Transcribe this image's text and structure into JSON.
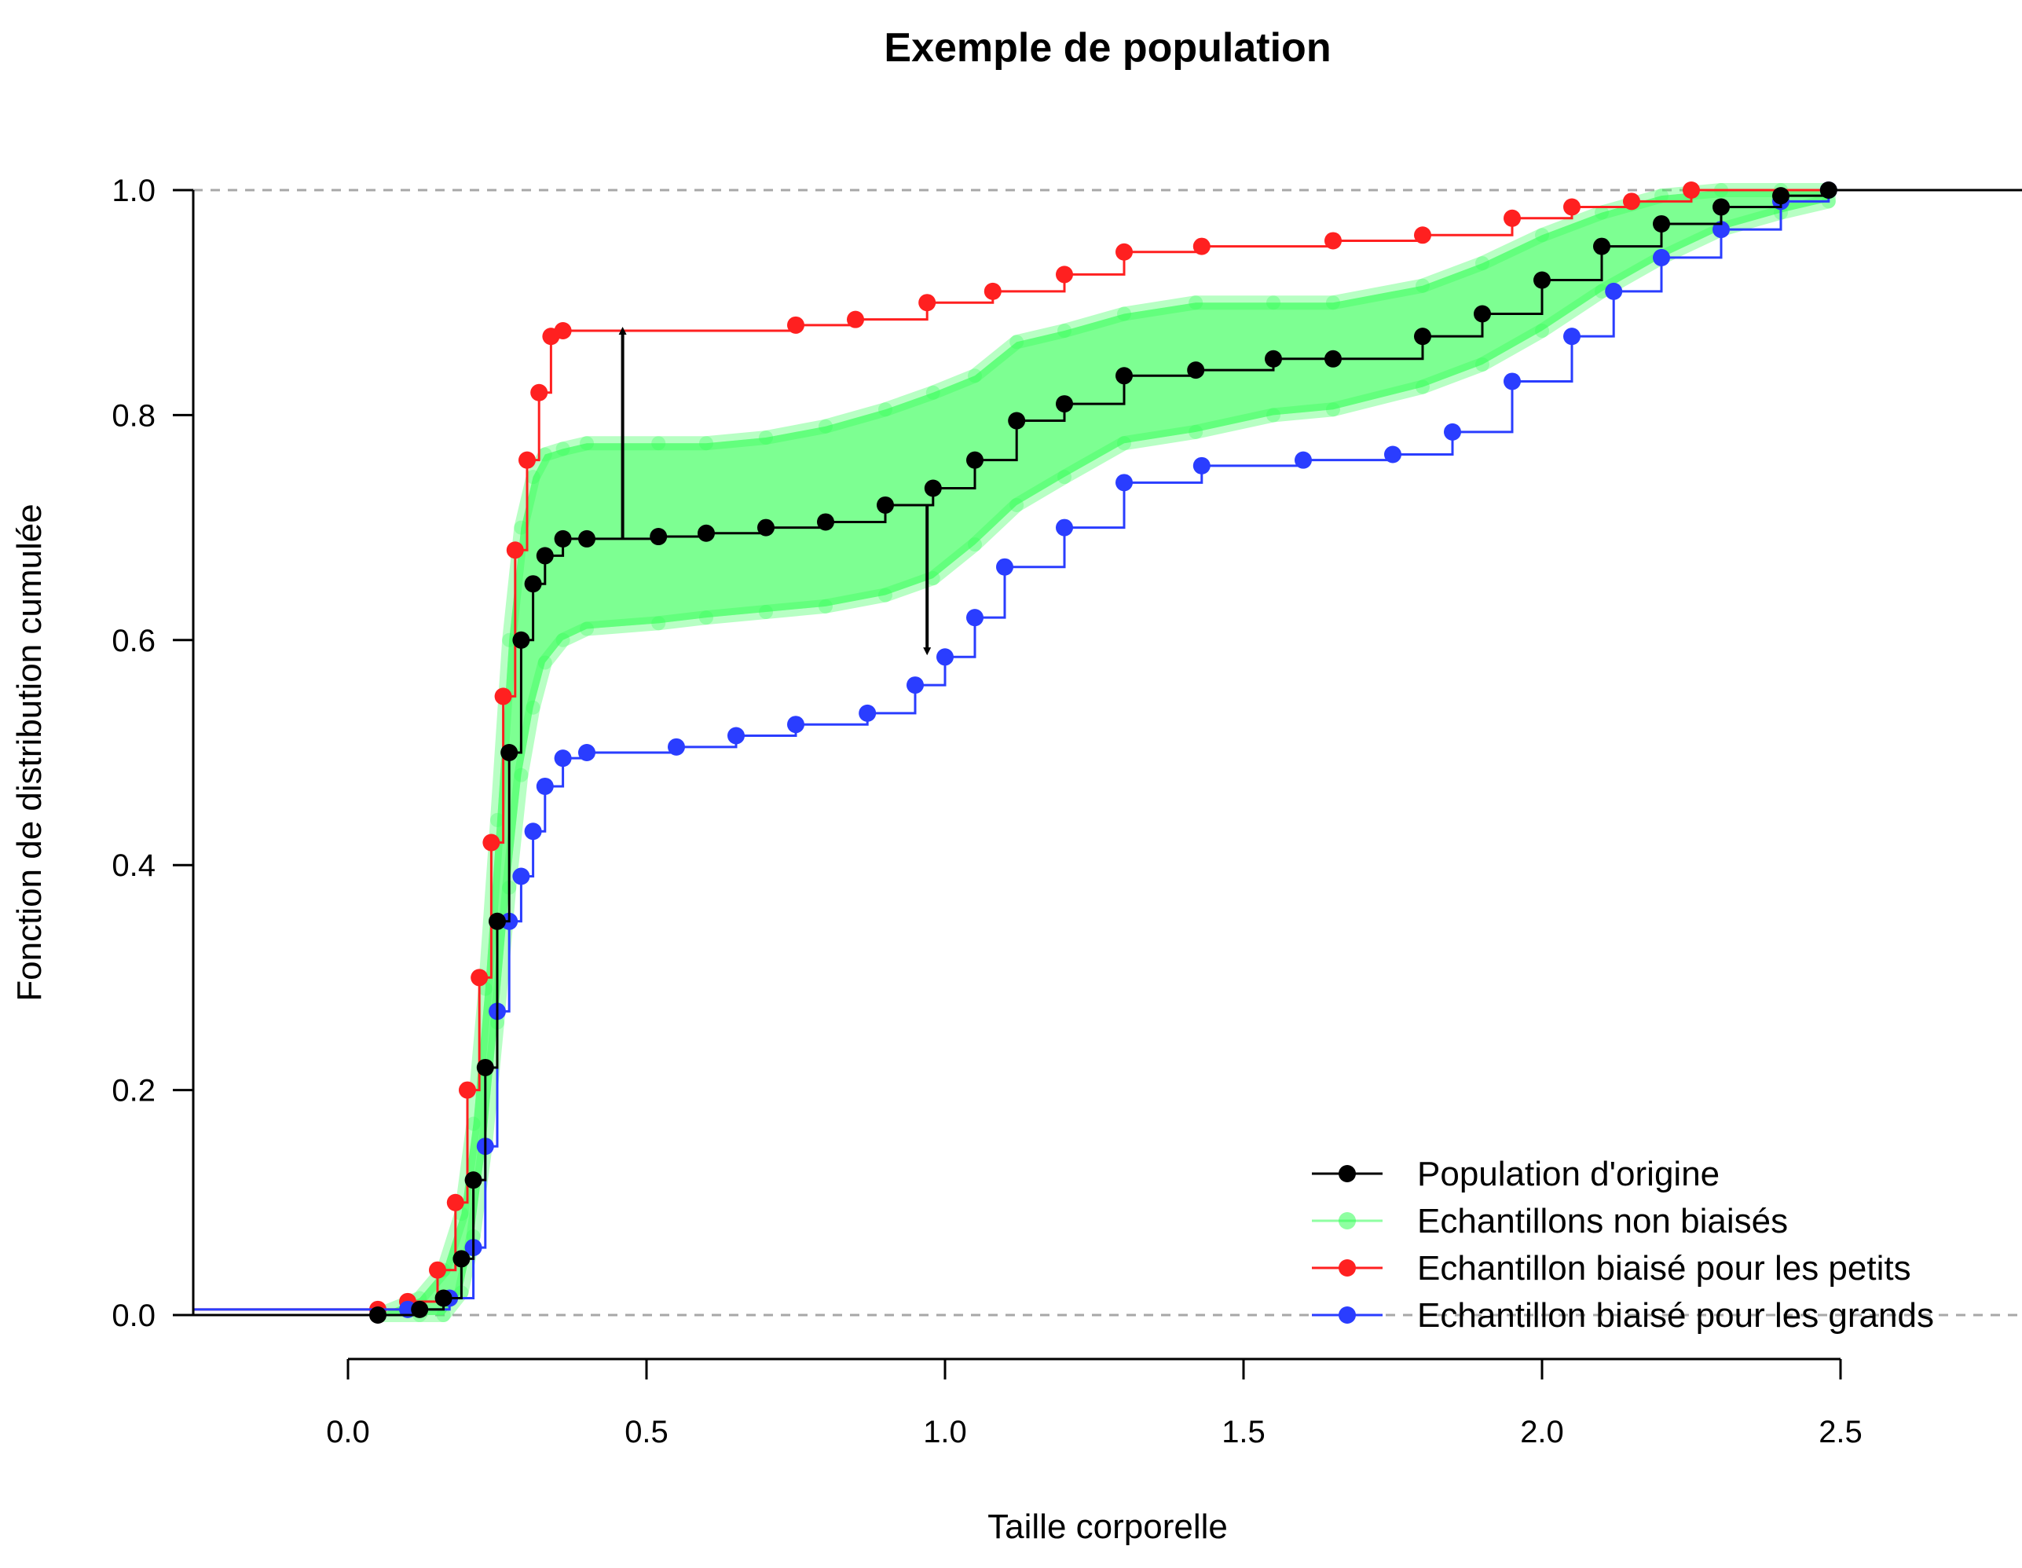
{
  "chart_data": {
    "type": "line",
    "title": "Exemple de population",
    "xlabel": "Taille corporelle",
    "ylabel": "Fonction de distribution cumulée",
    "xlim": [
      -0.28,
      2.85
    ],
    "ylim": [
      -0.04,
      1.04
    ],
    "x_ticks": [
      "0.0",
      "0.5",
      "1.0",
      "1.5",
      "2.0",
      "2.5"
    ],
    "y_ticks": [
      "0.0",
      "0.2",
      "0.4",
      "0.6",
      "0.8",
      "1.0"
    ],
    "x_tick_values": [
      0,
      0.5,
      1.0,
      1.5,
      2.0,
      2.5
    ],
    "y_tick_values": [
      0,
      0.2,
      0.4,
      0.6,
      0.8,
      1.0
    ],
    "reference_lines_y": [
      0,
      1
    ],
    "grid": false,
    "legend_position": "bottom-right",
    "series": [
      {
        "name": "Population d'origine",
        "color": "#000000",
        "points": [
          [
            0.05,
            0.0
          ],
          [
            0.12,
            0.005
          ],
          [
            0.16,
            0.015
          ],
          [
            0.19,
            0.05
          ],
          [
            0.21,
            0.12
          ],
          [
            0.23,
            0.22
          ],
          [
            0.25,
            0.35
          ],
          [
            0.27,
            0.5
          ],
          [
            0.29,
            0.6
          ],
          [
            0.31,
            0.65
          ],
          [
            0.33,
            0.675
          ],
          [
            0.36,
            0.69
          ],
          [
            0.4,
            0.69
          ],
          [
            0.52,
            0.692
          ],
          [
            0.6,
            0.695
          ],
          [
            0.7,
            0.7
          ],
          [
            0.8,
            0.705
          ],
          [
            0.9,
            0.72
          ],
          [
            0.98,
            0.735
          ],
          [
            1.05,
            0.76
          ],
          [
            1.12,
            0.795
          ],
          [
            1.2,
            0.81
          ],
          [
            1.3,
            0.835
          ],
          [
            1.42,
            0.84
          ],
          [
            1.55,
            0.85
          ],
          [
            1.65,
            0.85
          ],
          [
            1.8,
            0.87
          ],
          [
            1.9,
            0.89
          ],
          [
            2.0,
            0.92
          ],
          [
            2.1,
            0.95
          ],
          [
            2.2,
            0.97
          ],
          [
            2.3,
            0.985
          ],
          [
            2.4,
            0.995
          ],
          [
            2.48,
            1.0
          ]
        ]
      },
      {
        "name": "Echantillons non biaisés",
        "color": "#33ff55",
        "band": {
          "x": [
            0.05,
            0.12,
            0.16,
            0.19,
            0.21,
            0.23,
            0.25,
            0.27,
            0.29,
            0.31,
            0.33,
            0.36,
            0.4,
            0.52,
            0.6,
            0.7,
            0.8,
            0.9,
            0.98,
            1.05,
            1.12,
            1.2,
            1.3,
            1.42,
            1.55,
            1.65,
            1.8,
            1.9,
            2.0,
            2.1,
            2.2,
            2.3,
            2.4,
            2.48
          ],
          "lower": [
            0.0,
            0.0,
            0.0,
            0.02,
            0.07,
            0.15,
            0.26,
            0.38,
            0.48,
            0.54,
            0.58,
            0.6,
            0.61,
            0.615,
            0.62,
            0.625,
            0.63,
            0.64,
            0.655,
            0.685,
            0.72,
            0.745,
            0.775,
            0.785,
            0.8,
            0.805,
            0.825,
            0.845,
            0.875,
            0.91,
            0.94,
            0.965,
            0.98,
            0.99
          ],
          "upper": [
            0.0,
            0.015,
            0.04,
            0.09,
            0.17,
            0.29,
            0.44,
            0.6,
            0.7,
            0.745,
            0.765,
            0.77,
            0.775,
            0.775,
            0.775,
            0.78,
            0.79,
            0.805,
            0.82,
            0.835,
            0.865,
            0.875,
            0.89,
            0.9,
            0.9,
            0.9,
            0.915,
            0.935,
            0.96,
            0.98,
            0.995,
            1.0,
            1.0,
            1.0
          ]
        }
      },
      {
        "name": "Echantillon biaisé pour les petits",
        "color": "#ff2020",
        "points": [
          [
            0.05,
            0.005
          ],
          [
            0.1,
            0.012
          ],
          [
            0.15,
            0.04
          ],
          [
            0.18,
            0.1
          ],
          [
            0.2,
            0.2
          ],
          [
            0.22,
            0.3
          ],
          [
            0.24,
            0.42
          ],
          [
            0.26,
            0.55
          ],
          [
            0.28,
            0.68
          ],
          [
            0.3,
            0.76
          ],
          [
            0.32,
            0.82
          ],
          [
            0.34,
            0.87
          ],
          [
            0.36,
            0.875
          ],
          [
            0.75,
            0.88
          ],
          [
            0.85,
            0.885
          ],
          [
            0.97,
            0.9
          ],
          [
            1.08,
            0.91
          ],
          [
            1.2,
            0.925
          ],
          [
            1.3,
            0.945
          ],
          [
            1.43,
            0.95
          ],
          [
            1.65,
            0.955
          ],
          [
            1.8,
            0.96
          ],
          [
            1.95,
            0.975
          ],
          [
            2.05,
            0.985
          ],
          [
            2.15,
            0.99
          ],
          [
            2.25,
            1.0
          ]
        ]
      },
      {
        "name": "Echantillon biaisé pour les grands",
        "color": "#2a3dff",
        "points": [
          [
            0.1,
            0.005
          ],
          [
            0.17,
            0.015
          ],
          [
            0.21,
            0.06
          ],
          [
            0.23,
            0.15
          ],
          [
            0.25,
            0.27
          ],
          [
            0.27,
            0.35
          ],
          [
            0.29,
            0.39
          ],
          [
            0.31,
            0.43
          ],
          [
            0.33,
            0.47
          ],
          [
            0.36,
            0.495
          ],
          [
            0.4,
            0.5
          ],
          [
            0.55,
            0.505
          ],
          [
            0.65,
            0.515
          ],
          [
            0.75,
            0.525
          ],
          [
            0.87,
            0.535
          ],
          [
            0.95,
            0.56
          ],
          [
            1.0,
            0.585
          ],
          [
            1.05,
            0.62
          ],
          [
            1.1,
            0.665
          ],
          [
            1.2,
            0.7
          ],
          [
            1.3,
            0.74
          ],
          [
            1.43,
            0.755
          ],
          [
            1.6,
            0.76
          ],
          [
            1.75,
            0.765
          ],
          [
            1.85,
            0.785
          ],
          [
            1.95,
            0.83
          ],
          [
            2.05,
            0.87
          ],
          [
            2.12,
            0.91
          ],
          [
            2.2,
            0.94
          ],
          [
            2.3,
            0.965
          ],
          [
            2.4,
            0.99
          ],
          [
            2.48,
            1.0
          ]
        ]
      }
    ],
    "annotations": [
      {
        "type": "arrow",
        "x": 0.46,
        "from": 0.69,
        "to": 0.875
      },
      {
        "type": "arrow",
        "x": 0.97,
        "from": 0.72,
        "to": 0.59
      }
    ]
  }
}
